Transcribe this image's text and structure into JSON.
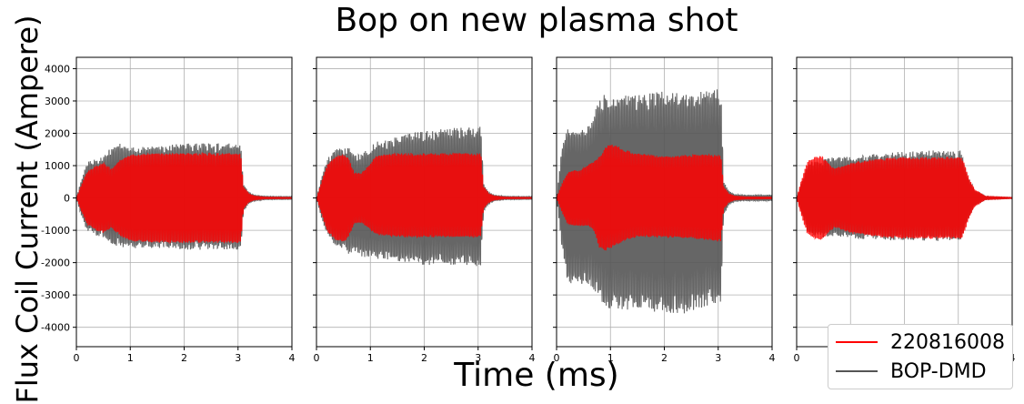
{
  "chart_data": {
    "type": "line",
    "title": "Bop on new plasma shot",
    "xlabel": "Time (ms)",
    "ylabel": "Flux Coil Current (Ampere)",
    "xlim": [
      0,
      4
    ],
    "ylim": [
      -4600,
      4350
    ],
    "xticks": [
      0,
      1,
      2,
      3,
      4
    ],
    "yticks": [
      -4000,
      -3000,
      -2000,
      -1000,
      0,
      1000,
      2000,
      3000,
      4000
    ],
    "grid": true,
    "sharey": true,
    "legend_position": "bottom-right",
    "series_styles": [
      {
        "name": "220816008",
        "color": "#ff0000"
      },
      {
        "name": "BOP-DMD",
        "color": "#555555"
      }
    ],
    "panels": [
      {
        "series": [
          {
            "name": "220816008",
            "envelope": {
              "t": [
                0,
                0.1,
                0.2,
                0.35,
                0.5,
                0.65,
                0.8,
                1.0,
                1.5,
                2.0,
                2.5,
                3.05,
                3.1,
                3.2,
                3.3,
                3.5,
                4.0
              ],
              "upper": [
                0,
                500,
                950,
                1150,
                1250,
                1050,
                1350,
                1550,
                1600,
                1600,
                1600,
                1600,
                400,
                150,
                70,
                30,
                20
              ],
              "lower": [
                0,
                -500,
                -950,
                -1150,
                -1250,
                -1050,
                -1350,
                -1550,
                -1600,
                -1600,
                -1600,
                -1600,
                -400,
                -150,
                -70,
                -30,
                -20
              ]
            }
          },
          {
            "name": "BOP-DMD",
            "envelope": {
              "t": [
                0,
                0.1,
                0.2,
                0.35,
                0.5,
                0.65,
                0.8,
                1.0,
                1.5,
                2.0,
                2.5,
                3.05,
                3.1,
                3.2,
                3.3,
                3.5,
                4.0
              ],
              "upper": [
                0,
                700,
                1300,
                1450,
                1450,
                1900,
                1950,
                1800,
                1850,
                1950,
                1950,
                1950,
                500,
                200,
                100,
                60,
                50
              ],
              "lower": [
                0,
                -700,
                -1200,
                -1350,
                -1400,
                -1650,
                -1750,
                -1800,
                -1800,
                -1850,
                -1850,
                -1850,
                -500,
                -200,
                -100,
                -60,
                -50
              ]
            }
          }
        ]
      },
      {
        "series": [
          {
            "name": "220816008",
            "envelope": {
              "t": [
                0,
                0.1,
                0.2,
                0.35,
                0.5,
                0.6,
                0.7,
                0.85,
                1.1,
                1.5,
                2.0,
                2.5,
                3.05,
                3.1,
                3.2,
                3.3,
                3.5,
                4.0
              ],
              "upper": [
                0,
                600,
                1200,
                1500,
                1600,
                1400,
                900,
                900,
                1500,
                1600,
                1600,
                1600,
                1600,
                400,
                150,
                70,
                30,
                20
              ],
              "lower": [
                0,
                -600,
                -1200,
                -1500,
                -1600,
                -1400,
                -900,
                -900,
                -1300,
                -1400,
                -1400,
                -1400,
                -1400,
                -400,
                -150,
                -70,
                -30,
                -20
              ]
            }
          },
          {
            "name": "BOP-DMD",
            "envelope": {
              "t": [
                0,
                0.1,
                0.2,
                0.35,
                0.5,
                0.6,
                0.7,
                0.85,
                1.1,
                1.5,
                2.0,
                2.5,
                3.05,
                3.1,
                3.2,
                3.3,
                3.5,
                4.0
              ],
              "upper": [
                0,
                800,
                1400,
                1750,
                1800,
                1900,
                1500,
                1600,
                2000,
                2200,
                2400,
                2500,
                2550,
                500,
                200,
                100,
                60,
                50
              ],
              "lower": [
                0,
                -800,
                -1300,
                -1700,
                -1800,
                -2000,
                -1900,
                -2100,
                -2200,
                -2300,
                -2400,
                -2400,
                -2450,
                -500,
                -200,
                -100,
                -60,
                -50
              ]
            }
          }
        ]
      },
      {
        "series": [
          {
            "name": "220816008",
            "envelope": {
              "t": [
                0,
                0.1,
                0.2,
                0.3,
                0.45,
                0.6,
                0.7,
                0.8,
                0.9,
                1.0,
                1.1,
                1.3,
                1.5,
                2.0,
                2.5,
                3.05,
                3.1,
                3.2,
                3.3,
                3.5,
                4.0
              ],
              "upper": [
                0,
                500,
                900,
                1000,
                1000,
                1200,
                1300,
                1500,
                1800,
                1950,
                1900,
                1700,
                1600,
                1500,
                1550,
                1550,
                400,
                150,
                70,
                40,
                30
              ],
              "lower": [
                0,
                -500,
                -900,
                -1000,
                -1000,
                -1000,
                -1200,
                -1800,
                -1900,
                -1800,
                -1700,
                -1500,
                -1400,
                -1400,
                -1450,
                -1550,
                -400,
                -150,
                -70,
                -40,
                -30
              ]
            }
          },
          {
            "name": "BOP-DMD",
            "envelope": {
              "t": [
                0,
                0.1,
                0.2,
                0.3,
                0.45,
                0.6,
                0.7,
                0.8,
                0.9,
                1.0,
                1.1,
                1.3,
                1.5,
                2.0,
                2.5,
                3.05,
                3.1,
                3.2,
                3.3,
                3.5,
                4.0
              ],
              "upper": [
                0,
                1800,
                2500,
                2500,
                2400,
                2700,
                3000,
                3600,
                3700,
                3400,
                3600,
                3700,
                3700,
                3800,
                3750,
                3900,
                600,
                250,
                120,
                100,
                100
              ],
              "lower": [
                0,
                -1800,
                -3000,
                -3100,
                -3100,
                -3100,
                -3300,
                -3600,
                -3900,
                -4000,
                -4000,
                -4100,
                -4000,
                -4100,
                -4150,
                -3700,
                -600,
                -250,
                -120,
                -100,
                -100
              ]
            }
          }
        ]
      },
      {
        "series": [
          {
            "name": "220816008",
            "envelope": {
              "t": [
                0,
                0.1,
                0.2,
                0.3,
                0.45,
                0.55,
                0.7,
                1.0,
                1.5,
                2.0,
                2.5,
                3.05,
                3.1,
                3.2,
                3.3,
                3.5,
                4.0
              ],
              "upper": [
                0,
                700,
                1300,
                1450,
                1500,
                1350,
                1050,
                1250,
                1400,
                1450,
                1450,
                1450,
                1300,
                700,
                300,
                60,
                20
              ],
              "lower": [
                0,
                -700,
                -1300,
                -1450,
                -1500,
                -1350,
                -1050,
                -1250,
                -1400,
                -1450,
                -1450,
                -1450,
                -1300,
                -700,
                -300,
                -60,
                -20
              ]
            }
          },
          {
            "name": "BOP-DMD",
            "envelope": {
              "t": [
                0,
                0.1,
                0.2,
                0.3,
                0.45,
                0.55,
                0.7,
                1.0,
                1.5,
                2.0,
                2.5,
                3.05,
                3.1,
                3.2,
                3.3,
                3.5,
                4.0
              ],
              "upper": [
                0,
                600,
                1200,
                1300,
                1300,
                1450,
                1500,
                1500,
                1600,
                1650,
                1700,
                1700,
                1300,
                700,
                300,
                60,
                20
              ],
              "lower": [
                0,
                -600,
                -1200,
                -1350,
                -1400,
                -1450,
                -1350,
                -1450,
                -1500,
                -1500,
                -1550,
                -1500,
                -1300,
                -700,
                -300,
                -60,
                -20
              ]
            }
          }
        ]
      }
    ]
  }
}
